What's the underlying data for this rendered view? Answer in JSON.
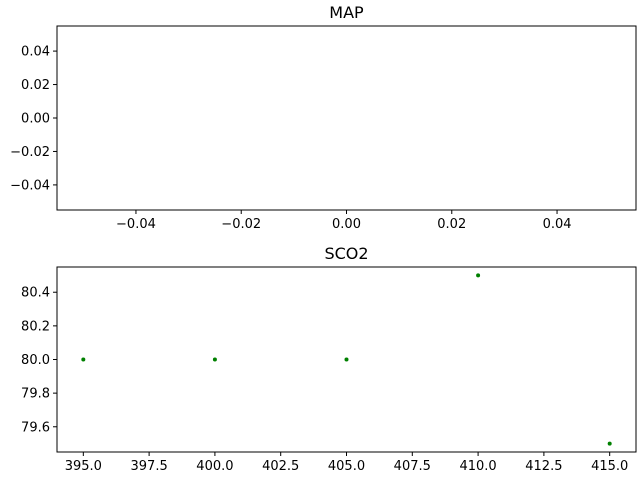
{
  "chart_data": [
    {
      "type": "scatter",
      "title": "MAP",
      "xlabel": "",
      "ylabel": "",
      "xlim": [
        -0.055,
        0.055
      ],
      "ylim": [
        -0.055,
        0.055
      ],
      "xticks": [
        -0.04,
        -0.02,
        0.0,
        0.02,
        0.04
      ],
      "xtick_labels": [
        "−0.04",
        "−0.02",
        "0.00",
        "0.02",
        "0.04"
      ],
      "yticks": [
        0.04,
        0.02,
        0.0,
        -0.02,
        -0.04
      ],
      "ytick_labels": [
        "0.04",
        "0.02",
        "0.00",
        "−0.02",
        "−0.04"
      ],
      "grid": false,
      "series": [
        {
          "color": "#008000",
          "x": [],
          "y": []
        }
      ]
    },
    {
      "type": "scatter",
      "title": "SCO2",
      "xlabel": "",
      "ylabel": "",
      "xlim": [
        394.0,
        416.0
      ],
      "ylim": [
        79.45,
        80.55
      ],
      "xticks": [
        395.0,
        397.5,
        400.0,
        402.5,
        405.0,
        407.5,
        410.0,
        412.5,
        415.0
      ],
      "xtick_labels": [
        "395.0",
        "397.5",
        "400.0",
        "402.5",
        "405.0",
        "407.5",
        "410.0",
        "412.5",
        "415.0"
      ],
      "yticks": [
        80.4,
        80.2,
        80.0,
        79.8,
        79.6
      ],
      "ytick_labels": [
        "80.4",
        "80.2",
        "80.0",
        "79.8",
        "79.6"
      ],
      "grid": false,
      "series": [
        {
          "color": "#008000",
          "x": [
            395,
            400,
            405,
            410,
            415
          ],
          "y": [
            80.0,
            80.0,
            80.0,
            80.5,
            79.5
          ]
        }
      ]
    }
  ]
}
